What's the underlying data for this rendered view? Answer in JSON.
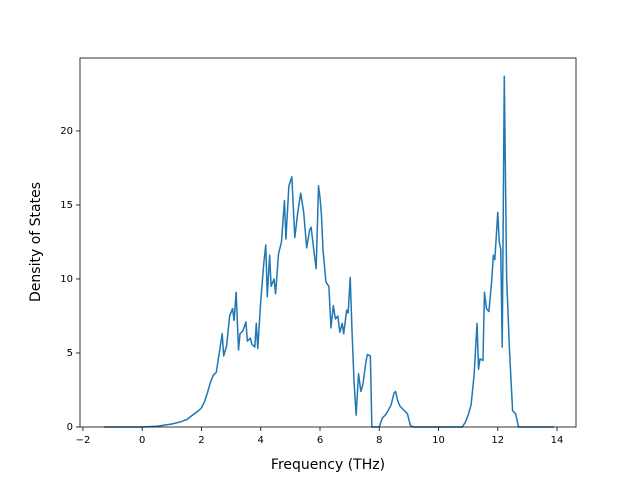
{
  "chart_data": {
    "type": "line",
    "x_label": "Frequency (THz)",
    "y_label": "Density of States",
    "xlim": [
      -2.1,
      14.64
    ],
    "ylim": [
      0,
      24.93
    ],
    "xticks": [
      {
        "value": -2,
        "label": "−2"
      },
      0,
      2,
      4,
      6,
      8,
      10,
      12,
      14
    ],
    "yticks": [
      0,
      5,
      10,
      15,
      20
    ],
    "series": [
      {
        "color": "#1f77b4",
        "x": [
          -1.3,
          -1,
          -0.5,
          0,
          0.5,
          1,
          1.3,
          1.5,
          1.7,
          1.9,
          2.0,
          2.1,
          2.2,
          2.3,
          2.4,
          2.5,
          2.6,
          2.7,
          2.75,
          2.85,
          2.95,
          3.05,
          3.1,
          3.17,
          3.25,
          3.3,
          3.4,
          3.5,
          3.55,
          3.65,
          3.7,
          3.8,
          3.85,
          3.9,
          4.0,
          4.1,
          4.17,
          4.22,
          4.3,
          4.35,
          4.45,
          4.5,
          4.6,
          4.7,
          4.8,
          4.85,
          4.95,
          5.05,
          5.15,
          5.25,
          5.35,
          5.45,
          5.55,
          5.65,
          5.7,
          5.8,
          5.87,
          5.95,
          6.0,
          6.05,
          6.1,
          6.2,
          6.3,
          6.37,
          6.45,
          6.52,
          6.6,
          6.67,
          6.75,
          6.8,
          6.9,
          6.95,
          7.02,
          7.08,
          7.15,
          7.22,
          7.3,
          7.38,
          7.45,
          7.55,
          7.6,
          7.7,
          7.75,
          7.8,
          8.0,
          8.1,
          8.2,
          8.3,
          8.4,
          8.5,
          8.55,
          8.62,
          8.7,
          8.8,
          8.95,
          9.05,
          9.15,
          10.8,
          10.9,
          11.0,
          11.1,
          11.2,
          11.3,
          11.35,
          11.4,
          11.5,
          11.55,
          11.62,
          11.7,
          11.8,
          11.85,
          11.9,
          12.0,
          12.05,
          12.1,
          12.15,
          12.22,
          12.3,
          12.4,
          12.5,
          12.6,
          12.7,
          13.9
        ],
        "values": [
          0,
          0,
          0,
          0,
          0.05,
          0.2,
          0.35,
          0.5,
          0.8,
          1.1,
          1.3,
          1.7,
          2.3,
          3.0,
          3.5,
          3.7,
          5.0,
          6.3,
          4.8,
          5.5,
          7.5,
          8.0,
          7.2,
          9.1,
          5.2,
          6.3,
          6.5,
          7.1,
          5.8,
          6.0,
          5.6,
          5.4,
          7.0,
          5.3,
          8.5,
          11,
          12.3,
          8.8,
          11.6,
          9.5,
          10.0,
          9.0,
          11.7,
          12.5,
          15.3,
          12.7,
          16.3,
          16.9,
          12.8,
          14.5,
          15.8,
          14.5,
          12.1,
          13.3,
          13.5,
          11.8,
          10.7,
          16.3,
          15.5,
          14.3,
          12.0,
          9.8,
          9.5,
          6.7,
          8.2,
          7.3,
          7.5,
          6.4,
          7.0,
          6.3,
          7.9,
          7.7,
          10.1,
          6.5,
          3.0,
          0.8,
          3.6,
          2.4,
          2.9,
          4.4,
          4.9,
          4.8,
          0,
          0,
          0,
          0.6,
          0.8,
          1.1,
          1.5,
          2.3,
          2.4,
          1.8,
          1.4,
          1.2,
          0.9,
          0.1,
          0,
          0,
          0.3,
          0.8,
          1.5,
          3.5,
          7.0,
          3.9,
          4.6,
          4.5,
          9.1,
          8.0,
          7.8,
          10.0,
          11.6,
          11.3,
          14.5,
          12.5,
          12.0,
          5.4,
          23.7,
          10.0,
          5.0,
          1.1,
          0.9,
          0,
          0
        ]
      }
    ]
  }
}
